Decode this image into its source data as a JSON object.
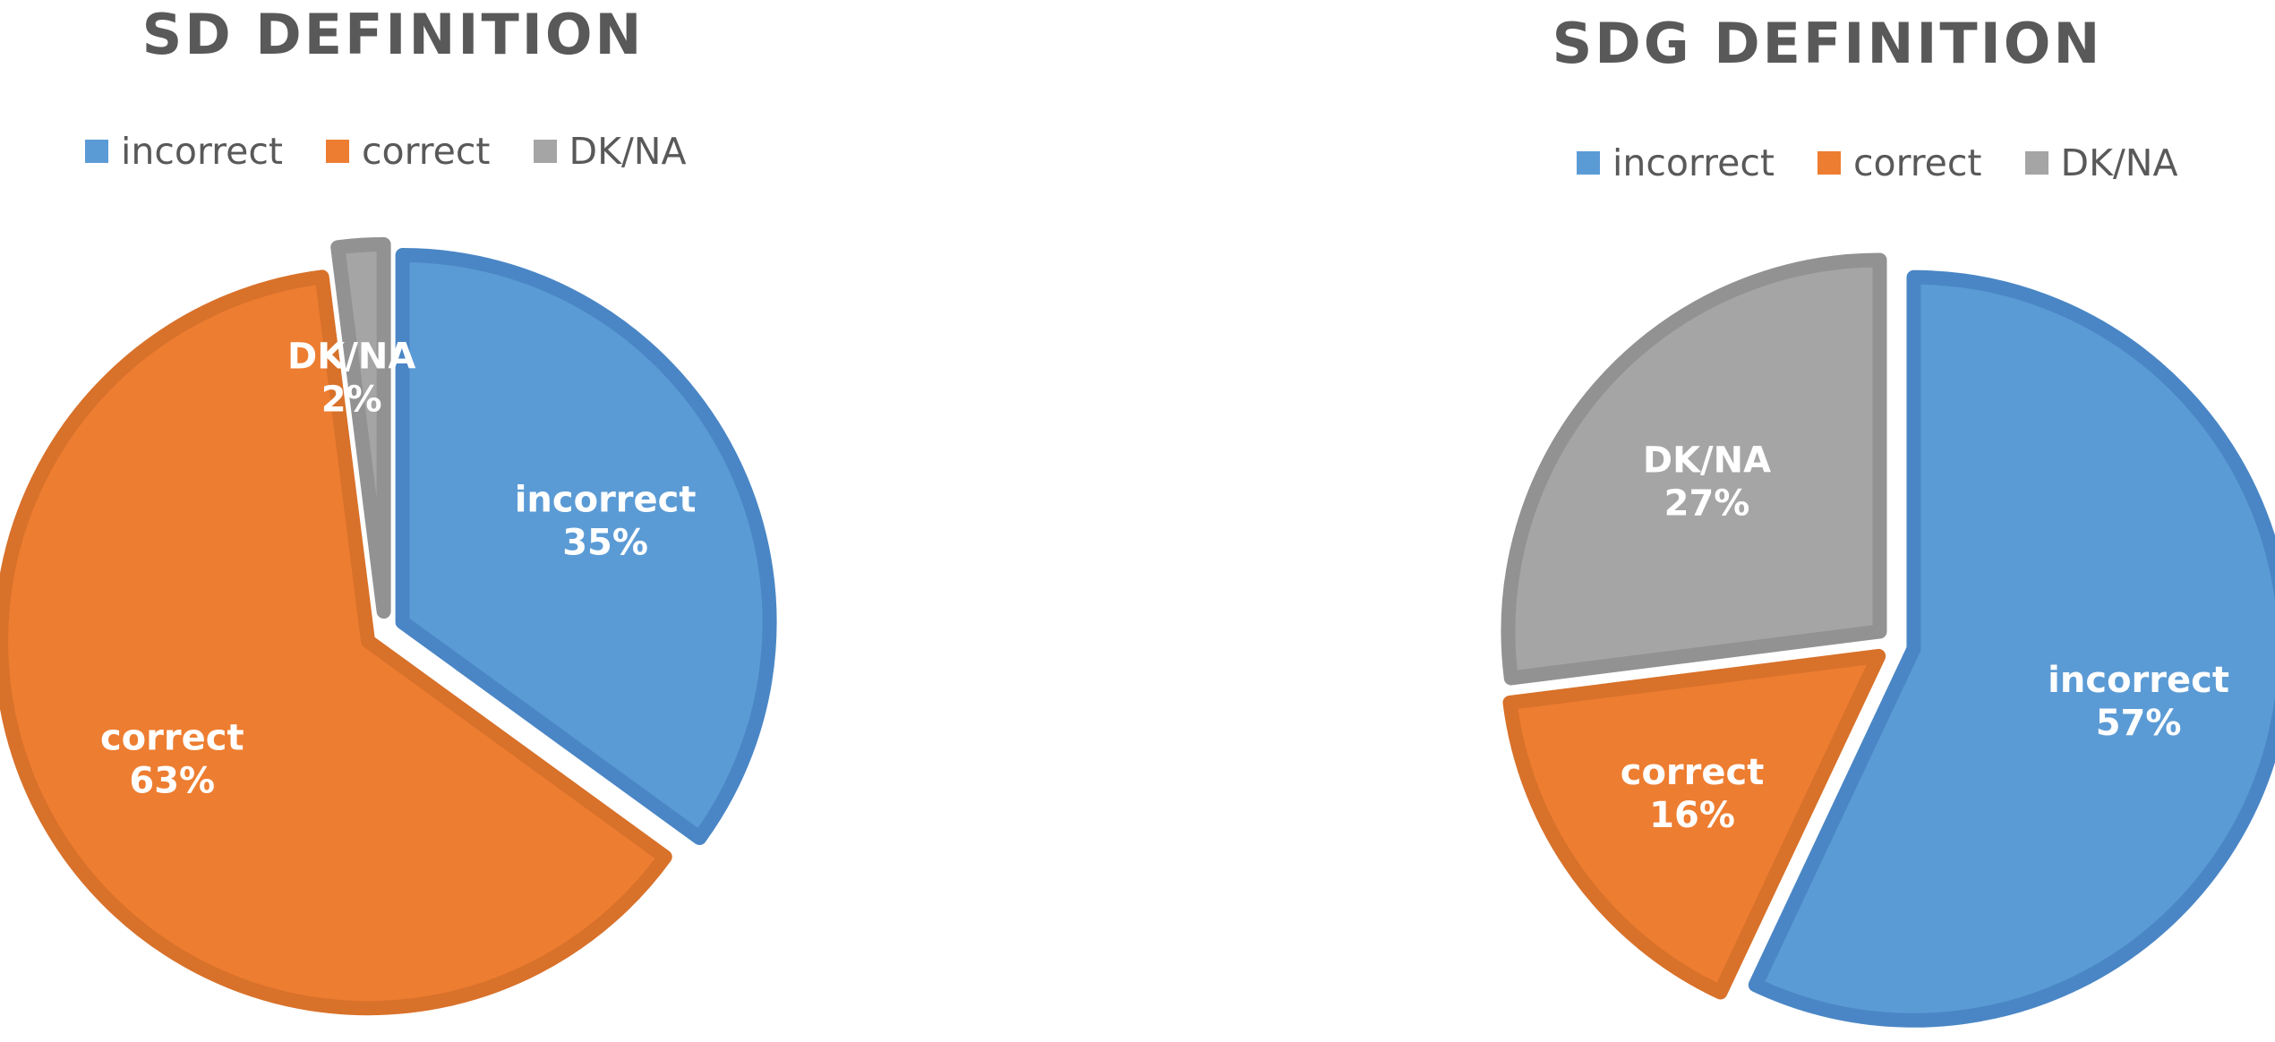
{
  "chart_data": [
    {
      "type": "pie",
      "title": "SD DEFINITION",
      "legend_position": "top",
      "categories": [
        "incorrect",
        "correct",
        "DK/NA"
      ],
      "values": [
        35,
        63,
        2
      ],
      "value_labels": [
        "35%",
        "63%",
        "2%"
      ],
      "colors": [
        "#5B9BD5",
        "#ED7D31",
        "#A5A5A5"
      ],
      "border_colors": [
        "#4A86C5",
        "#D8712A",
        "#929292"
      ]
    },
    {
      "type": "pie",
      "title": "SDG DEFINITION",
      "legend_position": "top",
      "categories": [
        "incorrect",
        "correct",
        "DK/NA"
      ],
      "values": [
        57,
        16,
        27
      ],
      "value_labels": [
        "57%",
        "16%",
        "27%"
      ],
      "colors": [
        "#5B9BD5",
        "#ED7D31",
        "#A5A5A5"
      ],
      "border_colors": [
        "#4A86C5",
        "#D8712A",
        "#929292"
      ]
    }
  ]
}
